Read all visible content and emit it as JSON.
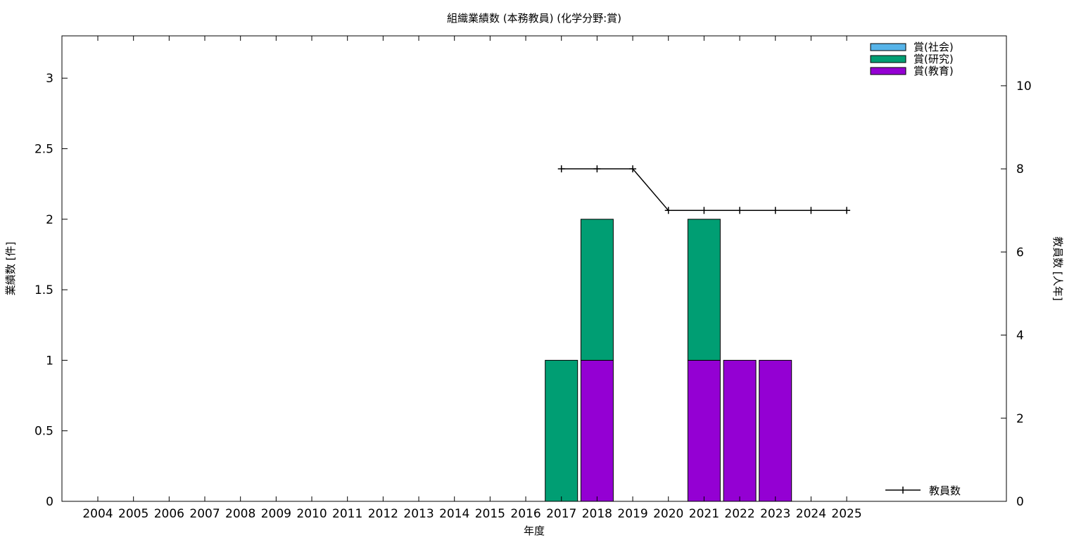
{
  "chart_data": {
    "type": "bar",
    "title": "組織業績数 (本務教員) (化学分野:賞)",
    "xlabel": "年度",
    "ylabel": "業績数 [件]",
    "y2label": "教員数 [人年]",
    "categories": [
      "2004",
      "2005",
      "2006",
      "2007",
      "2008",
      "2009",
      "2010",
      "2011",
      "2012",
      "2013",
      "2014",
      "2015",
      "2016",
      "2017",
      "2018",
      "2019",
      "2020",
      "2021",
      "2022",
      "2023",
      "2024",
      "2025"
    ],
    "ylim": [
      0,
      3.3
    ],
    "y2lim": [
      0,
      11.2
    ],
    "yticks": [
      0,
      0.5,
      1,
      1.5,
      2,
      2.5,
      3
    ],
    "ytick_labels": [
      "0",
      "0.5",
      "1",
      "1.5",
      "2",
      "2.5",
      "3"
    ],
    "y2ticks": [
      0,
      2,
      4,
      6,
      8,
      10
    ],
    "y2tick_labels": [
      "0",
      "2",
      "4",
      "6",
      "8",
      "10"
    ],
    "stacked": true,
    "grid": false,
    "legend_position": "top-right",
    "series": [
      {
        "name": "賞(社会)",
        "color": "#56b4e9",
        "values": [
          0,
          0,
          0,
          0,
          0,
          0,
          0,
          0,
          0,
          0,
          0,
          0,
          0,
          0,
          0,
          0,
          0,
          0,
          0,
          0,
          0,
          0
        ]
      },
      {
        "name": "賞(研究)",
        "color": "#009e73",
        "values": [
          0,
          0,
          0,
          0,
          0,
          0,
          0,
          0,
          0,
          0,
          0,
          0,
          0,
          1,
          1,
          0,
          0,
          1,
          0,
          0,
          0,
          0
        ]
      },
      {
        "name": "賞(教育)",
        "color": "#9400d3",
        "values": [
          0,
          0,
          0,
          0,
          0,
          0,
          0,
          0,
          0,
          0,
          0,
          0,
          0,
          0,
          1,
          0,
          0,
          1,
          1,
          1,
          0,
          0
        ]
      }
    ],
    "line_series": {
      "name": "教員数",
      "color": "#000000",
      "axis": "y2",
      "legend_position": "bottom-right",
      "x": [
        "2017",
        "2018",
        "2019",
        "2020",
        "2021",
        "2022",
        "2023",
        "2024",
        "2025"
      ],
      "values": [
        8,
        8,
        8,
        7,
        7,
        7,
        7,
        7,
        7
      ]
    }
  }
}
